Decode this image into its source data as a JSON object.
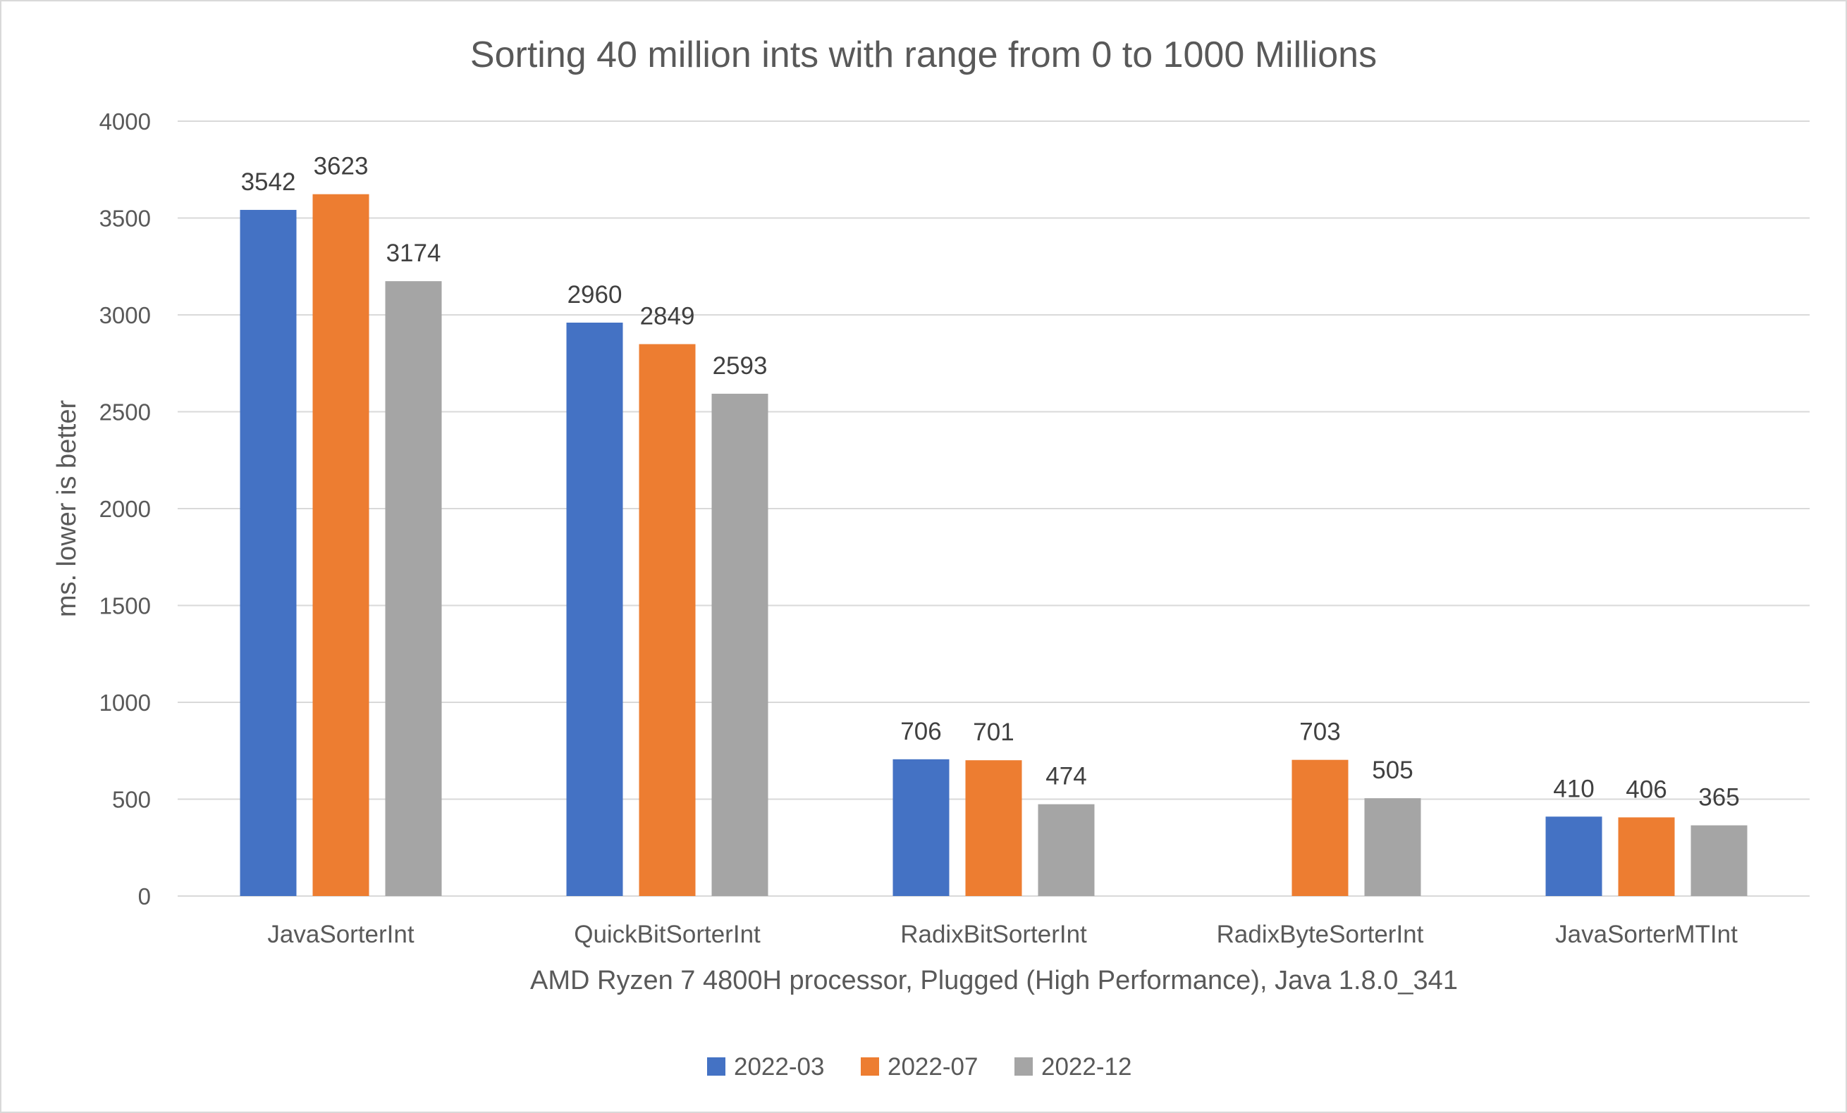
{
  "chart_data": {
    "type": "bar",
    "title": "Sorting 40 million ints with range from 0 to 1000 Millions",
    "xlabel": "AMD Ryzen 7 4800H processor, Plugged (High Performance), Java 1.8.0_341",
    "ylabel": "ms. lower is better",
    "ylim": [
      0,
      4000
    ],
    "yticks": [
      0,
      500,
      1000,
      1500,
      2000,
      2500,
      3000,
      3500,
      4000
    ],
    "grid": true,
    "legend_position": "bottom",
    "categories": [
      "JavaSorterInt",
      "QuickBitSorterInt",
      "RadixBitSorterInt",
      "RadixByteSorterInt",
      "JavaSorterMTInt"
    ],
    "series": [
      {
        "name": "2022-03",
        "color": "#4472c4",
        "values": [
          3542,
          2960,
          706,
          null,
          410
        ]
      },
      {
        "name": "2022-07",
        "color": "#ed7d31",
        "values": [
          3623,
          2849,
          701,
          703,
          406
        ]
      },
      {
        "name": "2022-12",
        "color": "#a5a5a5",
        "values": [
          3174,
          2593,
          474,
          505,
          365
        ]
      }
    ]
  }
}
